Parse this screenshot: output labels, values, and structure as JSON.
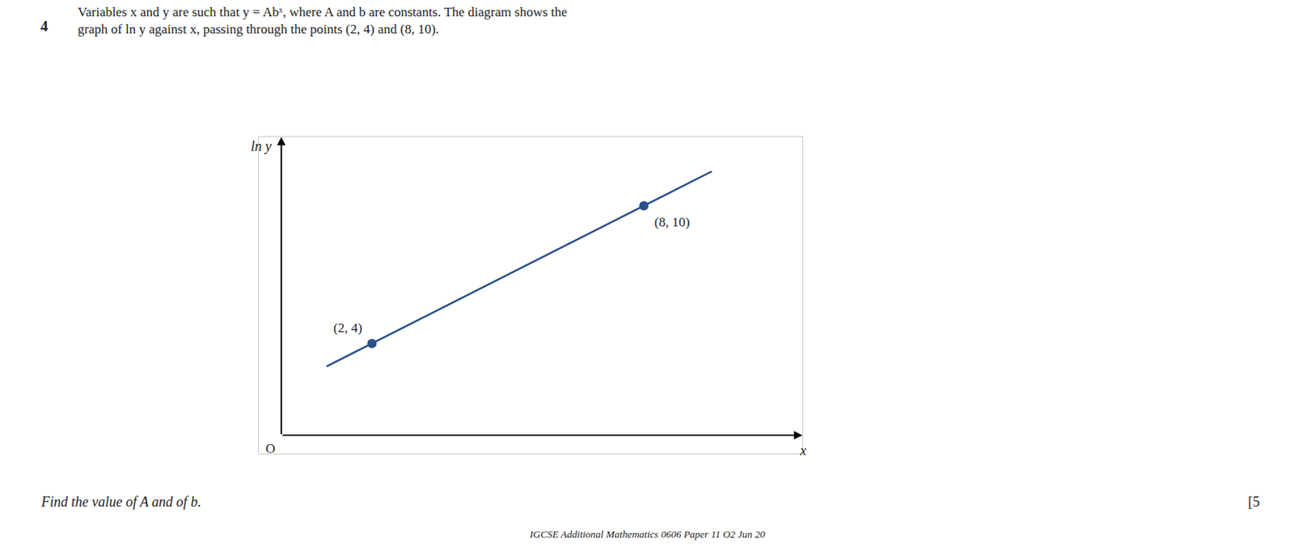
{
  "chart_data": {
    "type": "line",
    "title": "Variables x and y are such that y = Abˣ, where A and b are constants. The diagram shows the",
    "subtitle": "graph of ln y against x, passing through the points (2, 4) and (8, 10).",
    "xlabel": "x",
    "ylabel": "ln y",
    "annotations": [
      "O",
      "4",
      "Find the value of A and of b.",
      "[5",
      "IGCSE Additional Mathematics 0606 Paper 11 O2 Jun 20"
    ],
    "series": [
      {
        "type": "line",
        "x": [
          1.0,
          9.5
        ],
        "values": [
          3.0,
          11.5
        ],
        "color": "#2b4f8a",
        "line_style": "solid"
      },
      {
        "type": "scatter",
        "x": [
          2,
          8
        ],
        "values": [
          4,
          10
        ],
        "color": "#2b4f8a",
        "marker": "circle",
        "value_labels": [
          "(2, 4)",
          "(8, 10)"
        ]
      }
    ],
    "xlim": [
      -0.5,
      11.5
    ],
    "ylim": [
      -0.8,
      13.0
    ],
    "tick_labels": false,
    "grid": false
  }
}
